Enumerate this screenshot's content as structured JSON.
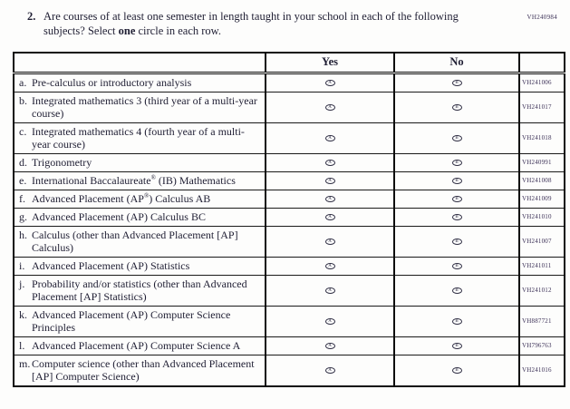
{
  "page": {
    "form_code": "VH240984",
    "question": {
      "number": "2.",
      "text_part1": "Are courses of at least one semester in length taught in your school in each of the following subjects? Select ",
      "bold_word": "one",
      "text_part2": " circle in each row."
    }
  },
  "table": {
    "headers": {
      "yes": "Yes",
      "no": "No"
    },
    "options": {
      "yes_letter": "A",
      "no_letter": "B"
    },
    "rows": [
      {
        "letter": "a.",
        "pre": "Pre-calculus or introductory analysis",
        "sup": "",
        "post": "",
        "code": "VH241006"
      },
      {
        "letter": "b.",
        "pre": "Integrated mathematics 3 (third year of a multi-year course)",
        "sup": "",
        "post": "",
        "code": "VH241017"
      },
      {
        "letter": "c.",
        "pre": "Integrated mathematics 4 (fourth year of a multi-year course)",
        "sup": "",
        "post": "",
        "code": "VH241018"
      },
      {
        "letter": "d.",
        "pre": "Trigonometry",
        "sup": "",
        "post": "",
        "code": "VH240991"
      },
      {
        "letter": "e.",
        "pre": "International Baccalaureate",
        "sup": "®",
        "post": " (IB) Mathematics",
        "code": "VH241008"
      },
      {
        "letter": "f.",
        "pre": "Advanced Placement (AP",
        "sup": "®",
        "post": ") Calculus AB",
        "code": "VH241009"
      },
      {
        "letter": "g.",
        "pre": "Advanced Placement (AP) Calculus BC",
        "sup": "",
        "post": "",
        "code": "VH241010"
      },
      {
        "letter": "h.",
        "pre": "Calculus (other than Advanced Placement [AP] Calculus)",
        "sup": "",
        "post": "",
        "code": "VH241007"
      },
      {
        "letter": "i.",
        "pre": "Advanced Placement (AP) Statistics",
        "sup": "",
        "post": "",
        "code": "VH241011"
      },
      {
        "letter": "j.",
        "pre": "Probability and/or statistics (other than Advanced Placement [AP] Statistics)",
        "sup": "",
        "post": "",
        "code": "VH241012"
      },
      {
        "letter": "k.",
        "pre": "Advanced Placement (AP) Computer Science Principles",
        "sup": "",
        "post": "",
        "code": "VH887721"
      },
      {
        "letter": "l.",
        "pre": "Advanced Placement (AP) Computer Science A",
        "sup": "",
        "post": "",
        "code": "VH796763"
      },
      {
        "letter": "m.",
        "pre": "Computer science (other than Advanced Placement [AP] Computer Science)",
        "sup": "",
        "post": "",
        "code": "VH241016"
      }
    ]
  }
}
